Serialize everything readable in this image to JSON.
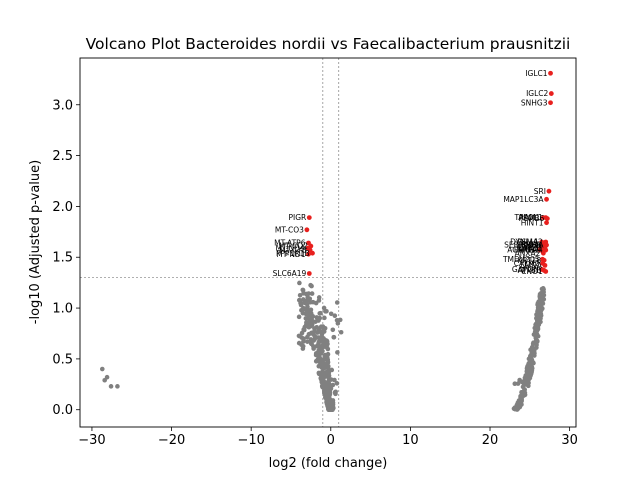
{
  "chart_data": {
    "type": "scatter",
    "title": "Volcano Plot Bacteroides nordii vs Faecalibacterium prausnitzii",
    "xlabel": "log2 (fold change)",
    "ylabel": "-log10 (Adjusted p-value)",
    "xlim": [
      -31.5,
      30.8
    ],
    "ylim": [
      -0.17,
      3.46
    ],
    "x_ticks": [
      -30,
      -20,
      -10,
      0,
      10,
      20,
      30
    ],
    "y_ticks": [
      0.0,
      0.5,
      1.0,
      1.5,
      2.0,
      2.5,
      3.0
    ],
    "x_tick_labels": [
      "−30",
      "−20",
      "−10",
      "0",
      "10",
      "20",
      "30"
    ],
    "y_tick_labels": [
      "0.0",
      "0.5",
      "1.0",
      "1.5",
      "2.0",
      "2.5",
      "3.0"
    ],
    "thresholds": {
      "fold_change_log2": [
        -1,
        1
      ],
      "p_value_neg_log10": 1.3
    },
    "grid": false,
    "colors": {
      "significant": "#e8201e",
      "non_significant": "#808080",
      "threshold_line": "#808080"
    },
    "significant_points": [
      {
        "label": "IGLC1",
        "x": 27.6,
        "y": 3.31
      },
      {
        "label": "IGLC2",
        "x": 27.7,
        "y": 3.11
      },
      {
        "label": "SNHG3",
        "x": 27.6,
        "y": 3.02
      },
      {
        "label": "SRI",
        "x": 27.4,
        "y": 2.15
      },
      {
        "label": "MAP1LC3A",
        "x": 27.1,
        "y": 2.07
      },
      {
        "label": "TRAM1",
        "x": 26.7,
        "y": 1.89
      },
      {
        "label": "APOL1",
        "x": 27.0,
        "y": 1.89
      },
      {
        "label": "PSMB6",
        "x": 27.2,
        "y": 1.88
      },
      {
        "label": "HINT1",
        "x": 27.1,
        "y": 1.84
      },
      {
        "label": "DYNLL1",
        "x": 26.5,
        "y": 1.65
      },
      {
        "label": "PSMA2",
        "x": 27.0,
        "y": 1.65
      },
      {
        "label": "SEPT7",
        "x": 26.6,
        "y": 1.62
      },
      {
        "label": "SERPINB9",
        "x": 26.8,
        "y": 1.62
      },
      {
        "label": "RAB1A",
        "x": 27.1,
        "y": 1.62
      },
      {
        "label": "LDHB",
        "x": 26.4,
        "y": 1.59
      },
      {
        "label": "CAPZB",
        "x": 26.9,
        "y": 1.59
      },
      {
        "label": "ACTR1A",
        "x": 26.3,
        "y": 1.57
      },
      {
        "label": "PSMB1",
        "x": 26.6,
        "y": 1.57
      },
      {
        "label": "ARPC4",
        "x": 27.0,
        "y": 1.57
      },
      {
        "label": "ANXA2",
        "x": 26.7,
        "y": 1.54
      },
      {
        "label": "TMEM205",
        "x": 26.6,
        "y": 1.48
      },
      {
        "label": "KRT18",
        "x": 26.8,
        "y": 1.47
      },
      {
        "label": "CALM2",
        "x": 26.6,
        "y": 1.44
      },
      {
        "label": "LMNA",
        "x": 26.9,
        "y": 1.42
      },
      {
        "label": "GAPDH",
        "x": 26.5,
        "y": 1.38
      },
      {
        "label": "ATP5B",
        "x": 26.8,
        "y": 1.37
      },
      {
        "label": "ENO1",
        "x": 27.0,
        "y": 1.36
      },
      {
        "label": "PIGR",
        "x": -2.7,
        "y": 1.89
      },
      {
        "label": "MT-CO3",
        "x": -3.0,
        "y": 1.77
      },
      {
        "label": "MT-ATP6",
        "x": -2.8,
        "y": 1.64
      },
      {
        "label": "MT-CO2",
        "x": -2.5,
        "y": 1.61
      },
      {
        "label": "MT-ND4",
        "x": -2.9,
        "y": 1.59
      },
      {
        "label": "MT-CYB",
        "x": -2.6,
        "y": 1.57
      },
      {
        "label": "PPP1R1B",
        "x": -2.3,
        "y": 1.54
      },
      {
        "label": "MT-ND1",
        "x": -2.8,
        "y": 1.53
      },
      {
        "label": "SLC6A19",
        "x": -2.7,
        "y": 1.34
      }
    ]
  }
}
